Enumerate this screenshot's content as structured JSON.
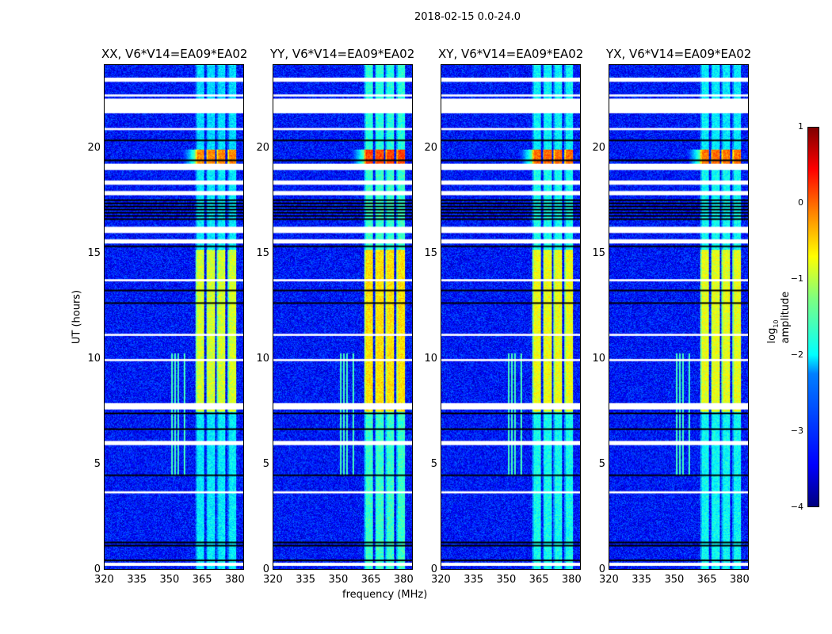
{
  "suptitle": "2018-02-15 0.0-24.0",
  "chart_data": {
    "type": "heatmap",
    "panels": [
      {
        "title": "XX, V6*V14=EA09*EA02",
        "gain": -0.2
      },
      {
        "title": "YY, V6*V14=EA09*EA02",
        "gain": 0.15
      },
      {
        "title": "XY, V6*V14=EA09*EA02",
        "gain": -0.05
      },
      {
        "title": "YX, V6*V14=EA09*EA02",
        "gain": -0.1
      }
    ],
    "xlabel": "frequency (MHz)",
    "ylabel": "UT (hours)",
    "xlim": [
      320,
      384.4
    ],
    "ylim": [
      0,
      24
    ],
    "xticks": [
      "320",
      "335",
      "350",
      "365",
      "380"
    ],
    "xtick_values": [
      320,
      335,
      350,
      365,
      380
    ],
    "yticks": [
      "0",
      "5",
      "10",
      "15",
      "20"
    ],
    "ytick_values": [
      0,
      5,
      10,
      15,
      20
    ],
    "colorbar": {
      "label_prefix": "log",
      "label_sub": "10",
      "label_suffix": " amplitude",
      "range": [
        -4,
        1
      ],
      "ticks": [
        "1",
        "0",
        "−1",
        "−2",
        "−3",
        "−4"
      ],
      "tick_values": [
        1,
        0,
        -1,
        -2,
        -3,
        -4
      ],
      "colormap": "jet"
    },
    "background_level": -3.3,
    "band_channels_mhz": [
      [
        362,
        366
      ],
      [
        367,
        371
      ],
      [
        372,
        376
      ],
      [
        377,
        381
      ]
    ],
    "band_levels_by_time": [
      {
        "from": 0,
        "to": 7.5,
        "level": -2.0
      },
      {
        "from": 7.5,
        "to": 15.2,
        "level": -0.9
      },
      {
        "from": 15.2,
        "to": 19.2,
        "level": -2.0
      },
      {
        "from": 19.2,
        "to": 20.0,
        "level": -0.1
      },
      {
        "from": 20.0,
        "to": 24,
        "level": -2.1
      }
    ],
    "rfi_spikes_mhz": [
      351,
      352.5,
      354,
      357
    ],
    "rfi_spike_hours": [
      4.5,
      10.3
    ],
    "flagged_white_hours": [
      [
        23.2,
        23.4
      ],
      [
        21.7,
        22.4
      ],
      [
        19.0,
        19.3
      ],
      [
        18.3,
        18.5
      ],
      [
        17.8,
        18.0
      ],
      [
        16.0,
        16.3
      ],
      [
        15.5,
        15.7
      ],
      [
        7.6,
        7.9
      ],
      [
        5.9,
        6.1
      ],
      [
        0.15,
        0.3
      ],
      [
        22.5,
        22.6
      ],
      [
        20.9,
        21.0
      ],
      [
        13.7,
        13.8
      ],
      [
        11.1,
        11.2
      ],
      [
        9.9,
        10.0
      ],
      [
        3.6,
        3.7
      ]
    ],
    "flagged_black_hours": [
      [
        20.3,
        20.45
      ],
      [
        19.4,
        19.5
      ],
      [
        16.6,
        17.6
      ],
      [
        15.3,
        15.4
      ],
      [
        13.2,
        13.3
      ],
      [
        12.6,
        12.7
      ],
      [
        7.35,
        7.45
      ],
      [
        6.6,
        6.7
      ],
      [
        4.4,
        4.5
      ],
      [
        1.1,
        1.3
      ],
      [
        0.35,
        0.45
      ]
    ]
  }
}
